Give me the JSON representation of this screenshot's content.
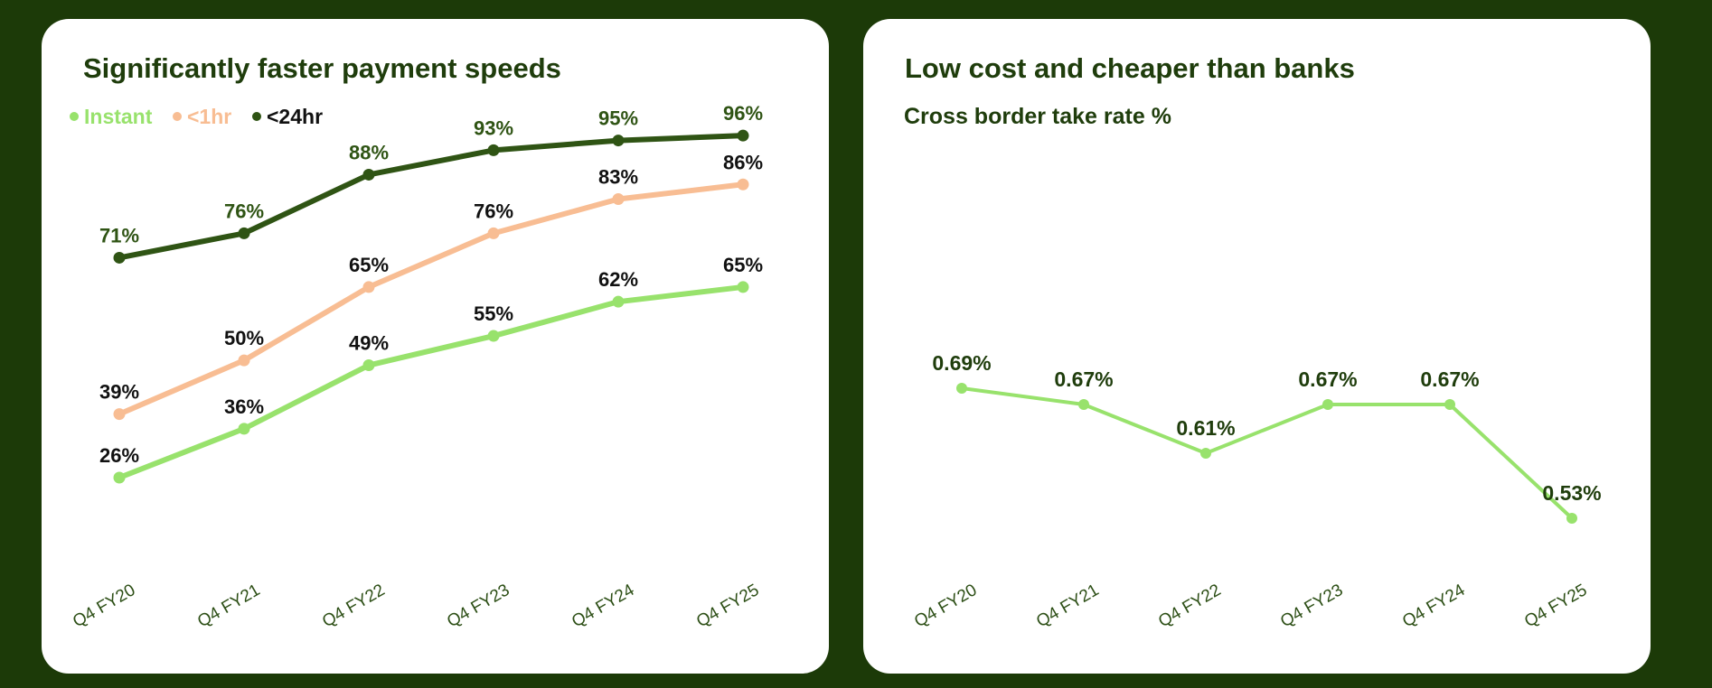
{
  "colors": {
    "background": "#1c3a08",
    "title": "#1f3d0c",
    "instant": "#98e26c",
    "lt1hr": "#f8bd93",
    "lt24hr": "#2f5414",
    "label_dark": "#111111",
    "axis_label": "#2d4f16"
  },
  "chart_data": [
    {
      "type": "line",
      "title": "Significantly faster payment speeds",
      "categories": [
        "Q4 FY20",
        "Q4 FY21",
        "Q4 FY22",
        "Q4 FY23",
        "Q4 FY24",
        "Q4 FY25"
      ],
      "series": [
        {
          "name": "Instant",
          "values": [
            26,
            36,
            49,
            55,
            62,
            65
          ],
          "labels": [
            "26%",
            "36%",
            "49%",
            "55%",
            "62%",
            "65%"
          ]
        },
        {
          "name": "<1hr",
          "values": [
            39,
            50,
            65,
            76,
            83,
            86
          ],
          "labels": [
            "39%",
            "50%",
            "65%",
            "76%",
            "83%",
            "86%"
          ]
        },
        {
          "name": "<24hr",
          "values": [
            71,
            76,
            88,
            93,
            95,
            96
          ],
          "labels": [
            "71%",
            "76%",
            "88%",
            "93%",
            "95%",
            "96%"
          ]
        }
      ],
      "legend": [
        "Instant",
        "<1hr",
        "<24hr"
      ],
      "legend_position": "top-left",
      "ylim": [
        0,
        100
      ],
      "grid": false
    },
    {
      "type": "line",
      "title": "Low cost and cheaper than banks",
      "subtitle": "Cross border take rate %",
      "categories": [
        "Q4 FY20",
        "Q4 FY21",
        "Q4 FY22",
        "Q4 FY23",
        "Q4 FY24",
        "Q4 FY25"
      ],
      "series": [
        {
          "name": "Cross border take rate %",
          "values": [
            0.69,
            0.67,
            0.61,
            0.67,
            0.67,
            0.53
          ],
          "labels": [
            "0.69%",
            "0.67%",
            "0.61%",
            "0.67%",
            "0.67%",
            "0.53%"
          ]
        }
      ],
      "ylim": [
        0.3,
        1.0
      ],
      "grid": false
    }
  ]
}
